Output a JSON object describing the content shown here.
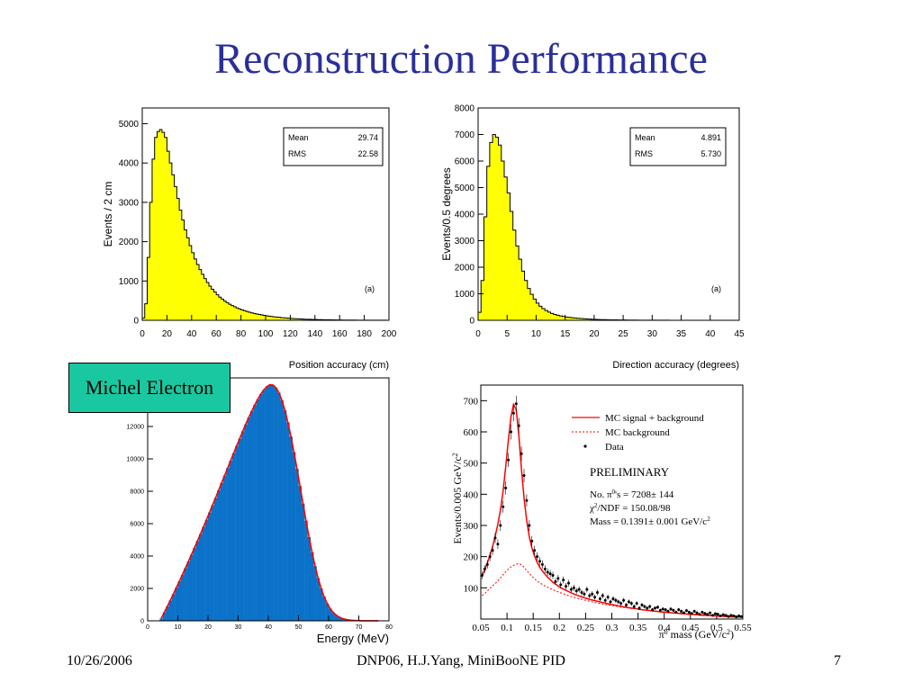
{
  "slide": {
    "title": "Reconstruction Performance",
    "michel_label": "Michel Electron",
    "footer_left": "10/26/2006",
    "footer_center": "DNP06, H.J.Yang,  MiniBooNE PID",
    "page_number": "7"
  },
  "colors": {
    "title": "#2b2f9a",
    "yellow_fill": "#ffff00",
    "blue_fill": "#0a72c8",
    "fit_red": "#ff0000",
    "michel_box": "#19c8a0"
  },
  "chart_data": [
    {
      "id": "position",
      "type": "bar",
      "ylabel": "Events / 2 cm",
      "xlabel": "Position accuracy (cm)",
      "xlim": [
        0,
        200
      ],
      "ylim": [
        0,
        5400
      ],
      "xticks": [
        0,
        20,
        40,
        60,
        80,
        100,
        120,
        140,
        160,
        180,
        200
      ],
      "yticks": [
        0,
        1000,
        2000,
        3000,
        4000,
        5000
      ],
      "bin_width": 2,
      "annotation": "(a)",
      "stats": [
        {
          "label": "Mean",
          "value": "29.74"
        },
        {
          "label": "RMS",
          "value": "22.58"
        }
      ],
      "values": [
        60,
        420,
        1600,
        3000,
        4100,
        4650,
        4800,
        4850,
        4780,
        4650,
        4300,
        4000,
        3700,
        3400,
        3100,
        2800,
        2550,
        2300,
        2100,
        1900,
        1720,
        1560,
        1420,
        1290,
        1170,
        1060,
        960,
        870,
        790,
        720,
        650,
        590,
        540,
        490,
        450,
        410,
        375,
        345,
        315,
        290,
        265,
        245,
        225,
        205,
        190,
        175,
        160,
        148,
        136,
        125,
        115,
        106,
        98,
        90,
        83,
        76,
        70,
        64,
        58,
        53,
        48,
        44,
        40,
        36,
        33,
        30,
        27,
        25,
        23,
        21,
        19,
        17,
        16,
        15,
        14,
        13,
        12,
        11,
        10,
        9,
        8,
        7,
        7,
        6,
        6,
        5,
        5,
        4,
        4,
        4,
        3,
        3,
        3,
        3,
        2,
        2,
        2,
        2,
        2,
        1
      ]
    },
    {
      "id": "direction",
      "type": "bar",
      "ylabel": "Events/0.5 degrees",
      "xlabel": "Direction accuracy (degrees)",
      "xlim": [
        0,
        45
      ],
      "ylim": [
        0,
        8000
      ],
      "xticks": [
        0,
        5,
        10,
        15,
        20,
        25,
        30,
        35,
        40,
        45
      ],
      "yticks": [
        0,
        1000,
        2000,
        3000,
        4000,
        5000,
        6000,
        7000,
        8000
      ],
      "bin_width": 0.5,
      "annotation": "(a)",
      "stats": [
        {
          "label": "Mean",
          "value": "4.891"
        },
        {
          "label": "RMS",
          "value": "5.730"
        }
      ],
      "values": [
        300,
        1500,
        3900,
        5800,
        6700,
        7000,
        6900,
        6600,
        6000,
        5400,
        4800,
        4100,
        3400,
        2800,
        2300,
        1850,
        1500,
        1200,
        980,
        800,
        650,
        530,
        440,
        370,
        310,
        260,
        220,
        190,
        165,
        145,
        125,
        110,
        97,
        85,
        75,
        66,
        58,
        51,
        45,
        40,
        35,
        31,
        27,
        24,
        21,
        19,
        17,
        15,
        13,
        12,
        11,
        10,
        9,
        8,
        7,
        6,
        6,
        5,
        5,
        4,
        4,
        4,
        3,
        3,
        3,
        3,
        2,
        2,
        2,
        2,
        2,
        2,
        1,
        1,
        1,
        1,
        1,
        1,
        1,
        1
      ]
    },
    {
      "id": "michel",
      "type": "bar",
      "xlabel": "Energy (MeV)",
      "xlim": [
        0,
        80
      ],
      "ylim": [
        0,
        15000
      ],
      "xticks": [
        0,
        10,
        20,
        30,
        40,
        50,
        60,
        70,
        80
      ],
      "yticks": [
        0,
        2000,
        4000,
        6000,
        8000,
        10000,
        12000,
        14000
      ],
      "bin_width": 1,
      "values": [
        0,
        0,
        0,
        0,
        150,
        520,
        880,
        1260,
        1650,
        2040,
        2440,
        2840,
        3250,
        3660,
        4080,
        4500,
        4930,
        5360,
        5800,
        6240,
        6690,
        7140,
        7590,
        8050,
        8510,
        8970,
        9430,
        9890,
        10350,
        10800,
        11250,
        11700,
        12130,
        12550,
        12950,
        13330,
        13680,
        14000,
        14260,
        14460,
        14580,
        14560,
        14400,
        14090,
        13620,
        13000,
        12250,
        11380,
        10420,
        9390,
        8320,
        7240,
        6180,
        5170,
        4230,
        3380,
        2640,
        2010,
        1490,
        1080,
        760,
        520,
        350,
        230,
        150,
        95,
        60,
        38,
        24,
        15,
        9,
        6,
        4,
        3,
        2,
        1,
        1,
        0,
        0,
        0
      ]
    },
    {
      "id": "pi0",
      "type": "scatter",
      "ylabel": "Events/0.005 GeV/c",
      "ylabel_exp": "2",
      "xlabel_pre": "π",
      "xlabel_sup": "0",
      "xlabel_main": " mass (GeV/c",
      "xlabel_exp": "2",
      "xlabel_end": ")",
      "xlim": [
        0.05,
        0.55
      ],
      "ylim": [
        0,
        750
      ],
      "xticks": [
        "0.05",
        "0.1",
        "0.15",
        "0.2",
        "0.25",
        "0.3",
        "0.35",
        "0.4",
        "0.45",
        "0.5",
        "0.55"
      ],
      "yticks": [
        100,
        200,
        300,
        400,
        500,
        600,
        700
      ],
      "legend": [
        {
          "label": "MC signal + background",
          "style": "solid"
        },
        {
          "label": "MC background",
          "style": "dotted"
        },
        {
          "label": "Data",
          "style": "point"
        }
      ],
      "preliminary": "PRELIMINARY",
      "fit_lines": [
        {
          "pre": "No. π",
          "sup": "0",
          "post": "'s = 7208± 144"
        },
        {
          "pre": "χ",
          "sup": "2",
          "post": "/NDF = 150.08/98"
        },
        {
          "pre": "Mass = 0.1391± 0.001 GeV/c",
          "sup": "2",
          "post": ""
        }
      ],
      "x": [
        0.0525,
        0.0575,
        0.0625,
        0.0675,
        0.0725,
        0.0775,
        0.0825,
        0.0875,
        0.0925,
        0.0975,
        0.1025,
        0.1075,
        0.1125,
        0.1175,
        0.1225,
        0.1275,
        0.1325,
        0.1375,
        0.1425,
        0.1475,
        0.1525,
        0.1575,
        0.1625,
        0.1675,
        0.1725,
        0.1775,
        0.1825,
        0.1875,
        0.1925,
        0.1975,
        0.2025,
        0.2075,
        0.2125,
        0.2175,
        0.2225,
        0.2275,
        0.2325,
        0.2375,
        0.2425,
        0.2475,
        0.2525,
        0.2575,
        0.2625,
        0.2675,
        0.2725,
        0.2775,
        0.2825,
        0.2875,
        0.2925,
        0.2975,
        0.3025,
        0.3075,
        0.3125,
        0.3175,
        0.3225,
        0.3275,
        0.3325,
        0.3375,
        0.3425,
        0.3475,
        0.3525,
        0.3575,
        0.3625,
        0.3675,
        0.3725,
        0.3775,
        0.3825,
        0.3875,
        0.3925,
        0.3975,
        0.4025,
        0.4075,
        0.4125,
        0.4175,
        0.4225,
        0.4275,
        0.4325,
        0.4375,
        0.4425,
        0.4475,
        0.4525,
        0.4575,
        0.4625,
        0.4675,
        0.4725,
        0.4775,
        0.4825,
        0.4875,
        0.4925,
        0.4975,
        0.5025,
        0.5075,
        0.5125,
        0.5175,
        0.5225,
        0.5275,
        0.5325,
        0.5375,
        0.5425,
        0.5475
      ],
      "data": [
        140,
        160,
        175,
        200,
        220,
        260,
        240,
        300,
        360,
        420,
        510,
        600,
        660,
        690,
        620,
        530,
        460,
        380,
        300,
        250,
        220,
        200,
        185,
        175,
        160,
        150,
        145,
        140,
        120,
        130,
        110,
        125,
        105,
        115,
        95,
        100,
        90,
        95,
        85,
        80,
        95,
        75,
        80,
        70,
        85,
        65,
        75,
        60,
        70,
        55,
        65,
        60,
        55,
        50,
        60,
        45,
        55,
        50,
        40,
        50,
        35,
        45,
        40,
        35,
        40,
        30,
        35,
        38,
        28,
        32,
        30,
        25,
        32,
        28,
        22,
        30,
        25,
        20,
        27,
        22,
        18,
        25,
        20,
        15,
        22,
        18,
        15,
        20,
        12,
        17,
        15,
        10,
        14,
        12,
        8,
        12,
        10,
        7,
        10,
        8
      ],
      "signal_bkg": [
        138,
        158,
        180,
        205,
        232,
        266,
        304,
        350,
        410,
        488,
        572,
        648,
        688,
        672,
        590,
        482,
        388,
        316,
        264,
        228,
        202,
        182,
        166,
        154,
        144,
        134,
        126,
        118,
        112,
        106,
        100,
        96,
        92,
        88,
        84,
        80,
        77,
        74,
        71,
        68,
        66,
        63,
        61,
        59,
        57,
        55,
        53,
        51,
        49,
        47,
        46,
        44,
        42,
        41,
        39,
        38,
        36,
        35,
        34,
        33,
        31,
        30,
        29,
        28,
        27,
        26,
        25,
        24,
        23,
        22,
        22,
        21,
        20,
        19,
        19,
        18,
        17,
        17,
        16,
        15,
        15,
        14,
        14,
        13,
        12,
        12,
        11,
        11,
        10,
        10,
        9,
        9,
        9,
        8,
        8,
        7,
        7,
        7,
        6,
        6
      ],
      "background": [
        75,
        82,
        90,
        98,
        106,
        114,
        122,
        132,
        142,
        152,
        160,
        167,
        172,
        176,
        178,
        174,
        166,
        156,
        146,
        137,
        129,
        122,
        116,
        111,
        106,
        102,
        98,
        94,
        90,
        87,
        84,
        81,
        78,
        75,
        72,
        70,
        67,
        65,
        63,
        61,
        59,
        57,
        55,
        53,
        52,
        50,
        48,
        47,
        45,
        44,
        42,
        41,
        40,
        38,
        37,
        36,
        35,
        34,
        33,
        32,
        31,
        30,
        29,
        28,
        27,
        26,
        26,
        25,
        24,
        23,
        23,
        22,
        21,
        21,
        20,
        19,
        19,
        18,
        18,
        17,
        17,
        16,
        16,
        15,
        15,
        14,
        14,
        13,
        13,
        13,
        12,
        12,
        11,
        11,
        11,
        10,
        10,
        10,
        9,
        9
      ]
    }
  ]
}
